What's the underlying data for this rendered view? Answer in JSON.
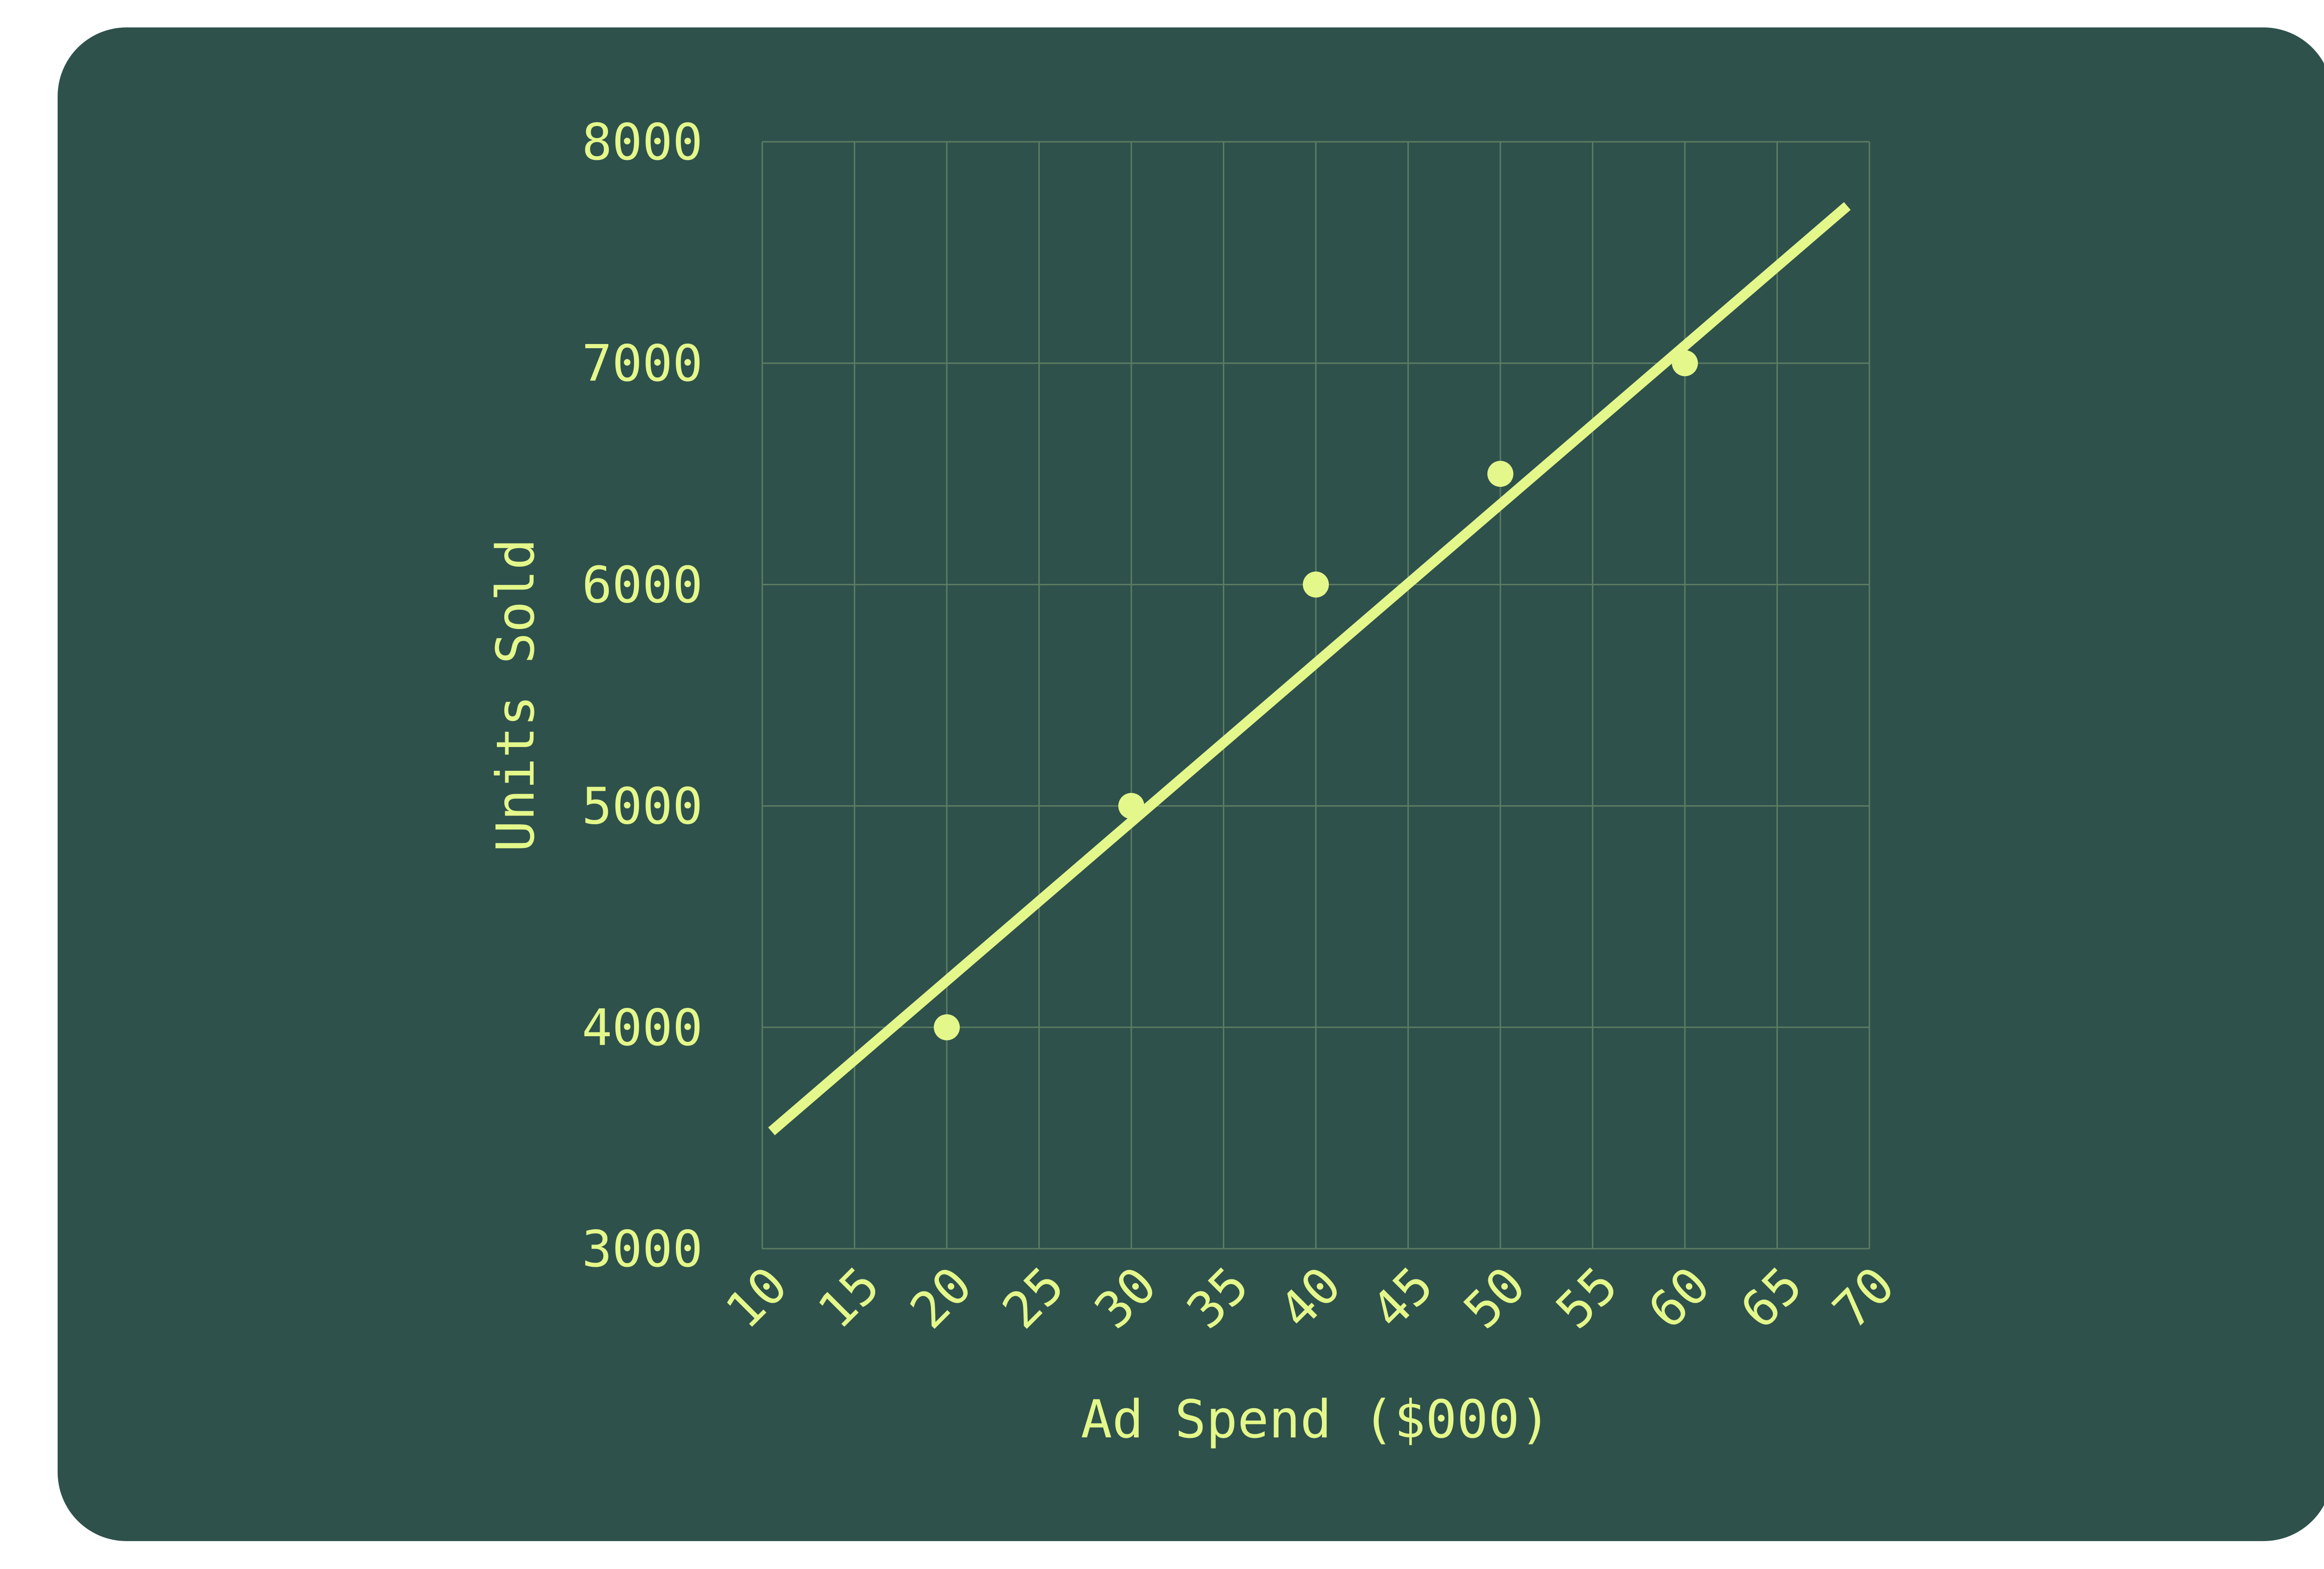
{
  "colors": {
    "background": "#ffffff",
    "card": "#2e514c",
    "accent": "#e4f78a",
    "grid": "#5c7d62"
  },
  "chart_data": {
    "type": "scatter",
    "title": "",
    "xlabel": "Ad Spend ($000)",
    "ylabel": "Units Sold",
    "xlim": [
      10,
      70
    ],
    "ylim": [
      3000,
      8000
    ],
    "x_ticks": [
      10,
      15,
      20,
      25,
      30,
      35,
      40,
      45,
      50,
      55,
      60,
      65,
      70
    ],
    "y_ticks": [
      3000,
      4000,
      5000,
      6000,
      7000,
      8000
    ],
    "grid": true,
    "legend": "none",
    "series": [
      {
        "type": "scatter",
        "points": [
          {
            "x": 20,
            "y": 4000
          },
          {
            "x": 30,
            "y": 5000
          },
          {
            "x": 40,
            "y": 6000
          },
          {
            "x": 50,
            "y": 6500
          },
          {
            "x": 60,
            "y": 7000
          }
        ]
      },
      {
        "type": "line",
        "kind": "trend",
        "points": [
          {
            "x": 10.5,
            "y": 3530
          },
          {
            "x": 68.8,
            "y": 7710
          }
        ]
      }
    ]
  }
}
